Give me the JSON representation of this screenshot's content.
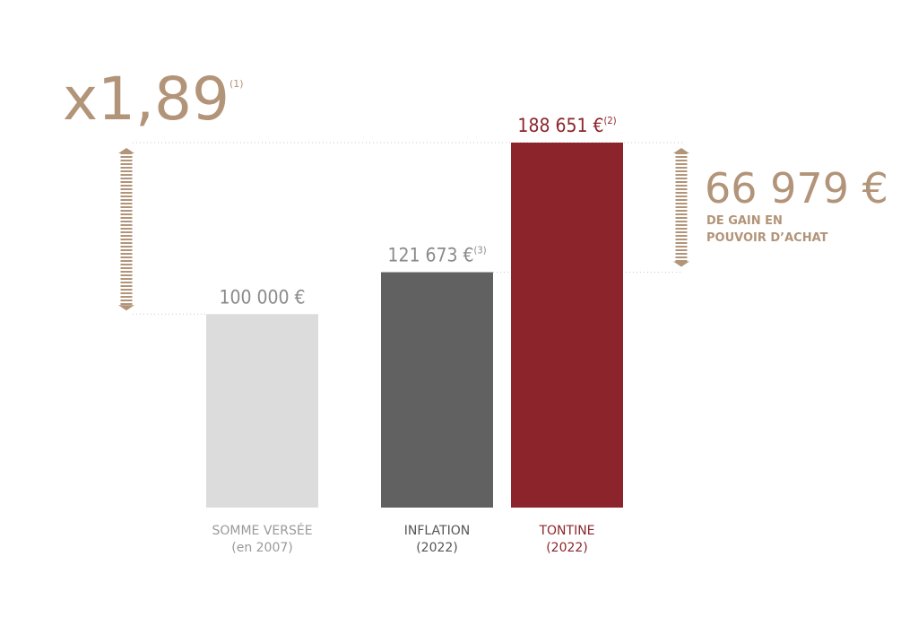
{
  "chart_data": {
    "type": "bar",
    "categories": [
      "SOMME VERSÉE",
      "INFLATION",
      "TONTINE"
    ],
    "category_sublabels": [
      "(en 2007)",
      "(2022)",
      "(2022)"
    ],
    "values": [
      100000,
      121673,
      188651
    ],
    "value_labels": [
      "100 000 €",
      "121 673 €",
      "188 651 €"
    ],
    "value_notes": [
      null,
      "(3)",
      "(2)"
    ],
    "colors": [
      "#dcdcdc",
      "#616161",
      "#8c252b"
    ],
    "label_colors": [
      "#9a9a9a",
      "#555555",
      "#8c252b"
    ],
    "annotations": {
      "multiplier": "x1,89",
      "multiplier_note": "(1)",
      "gain": "66 979 €",
      "gain_label": [
        "DE GAIN EN",
        "POUVOIR D’ACHAT"
      ]
    },
    "accent_color": "#b29479"
  }
}
